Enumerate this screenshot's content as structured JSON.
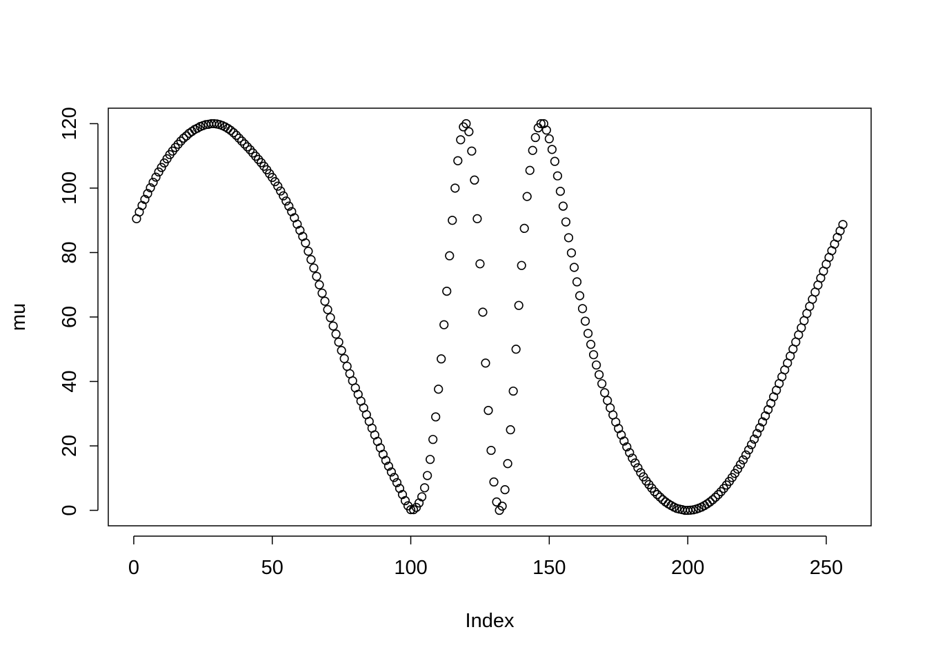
{
  "chart_data": {
    "type": "scatter",
    "x_label": "Index",
    "y_label": "mu",
    "color": "#000000",
    "x": [
      1,
      2,
      3,
      4,
      5,
      6,
      7,
      8,
      9,
      10,
      11,
      12,
      13,
      14,
      15,
      16,
      17,
      18,
      19,
      20,
      21,
      22,
      23,
      24,
      25,
      26,
      27,
      28,
      29,
      30,
      31,
      32,
      33,
      34,
      35,
      36,
      37,
      38,
      39,
      40,
      41,
      42,
      43,
      44,
      45,
      46,
      47,
      48,
      49,
      50,
      51,
      52,
      53,
      54,
      55,
      56,
      57,
      58,
      59,
      60,
      61,
      62,
      63,
      64,
      65,
      66,
      67,
      68,
      69,
      70,
      71,
      72,
      73,
      74,
      75,
      76,
      77,
      78,
      79,
      80,
      81,
      82,
      83,
      84,
      85,
      86,
      87,
      88,
      89,
      90,
      91,
      92,
      93,
      94,
      95,
      96,
      97,
      98,
      99,
      100,
      101,
      102,
      103,
      104,
      105,
      106,
      107,
      108,
      109,
      110,
      111,
      112,
      113,
      114,
      115,
      116,
      117,
      118,
      119,
      120,
      121,
      122,
      123,
      124,
      125,
      126,
      127,
      128,
      129,
      130,
      131,
      132,
      133,
      134,
      135,
      136,
      137,
      138,
      139,
      140,
      141,
      142,
      143,
      144,
      145,
      146,
      147,
      148,
      149,
      150,
      151,
      152,
      153,
      154,
      155,
      156,
      157,
      158,
      159,
      160,
      161,
      162,
      163,
      164,
      165,
      166,
      167,
      168,
      169,
      170,
      171,
      172,
      173,
      174,
      175,
      176,
      177,
      178,
      179,
      180,
      181,
      182,
      183,
      184,
      185,
      186,
      187,
      188,
      189,
      190,
      191,
      192,
      193,
      194,
      195,
      196,
      197,
      198,
      199,
      200,
      201,
      202,
      203,
      204,
      205,
      206,
      207,
      208,
      209,
      210,
      211,
      212,
      213,
      214,
      215,
      216,
      217,
      218,
      219,
      220,
      221,
      222,
      223,
      224,
      225,
      226,
      227,
      228,
      229,
      230,
      231,
      232,
      233,
      234,
      235,
      236,
      237,
      238,
      239,
      240,
      241,
      242,
      243,
      244,
      245,
      246,
      247,
      248,
      249,
      250,
      251,
      252,
      253,
      254,
      255,
      256
    ],
    "values": [
      90.5,
      92.6,
      94.6,
      96.5,
      98.3,
      100.1,
      101.8,
      103.4,
      105.0,
      106.4,
      107.8,
      109.1,
      110.4,
      111.5,
      112.6,
      113.6,
      114.6,
      115.5,
      116.2,
      117.0,
      117.6,
      118.2,
      118.6,
      119.1,
      119.4,
      119.7,
      119.8,
      120.0,
      120.0,
      119.9,
      119.7,
      119.4,
      119.0,
      118.5,
      117.9,
      117.2,
      116.4,
      115.5,
      114.6,
      113.7,
      112.8,
      111.9,
      110.9,
      109.9,
      108.9,
      107.9,
      106.8,
      105.7,
      104.5,
      103.3,
      102.0,
      100.6,
      99.1,
      97.6,
      96.0,
      94.4,
      92.7,
      90.8,
      88.8,
      86.9,
      85.0,
      83.0,
      80.4,
      77.8,
      75.2,
      72.6,
      70.0,
      67.4,
      64.9,
      62.3,
      59.8,
      57.2,
      54.7,
      52.2,
      49.6,
      47.1,
      44.7,
      42.4,
      40.2,
      38.0,
      36.0,
      33.9,
      31.8,
      29.7,
      27.6,
      25.5,
      23.4,
      21.4,
      19.4,
      17.4,
      15.5,
      13.7,
      11.9,
      10.2,
      8.6,
      6.8,
      4.9,
      3.0,
      1.4,
      0.2,
      0.2,
      0.9,
      2.3,
      4.2,
      7.0,
      10.8,
      15.8,
      22.0,
      29.0,
      37.6,
      47.0,
      57.6,
      68.0,
      79.0,
      90.0,
      100.0,
      108.5,
      115.0,
      119.0,
      120.0,
      117.5,
      111.5,
      102.5,
      90.5,
      76.5,
      61.5,
      45.7,
      31.0,
      18.6,
      8.8,
      2.6,
      0.0,
      1.3,
      6.4,
      14.5,
      25.0,
      37.0,
      50.0,
      63.6,
      76.0,
      87.5,
      97.4,
      105.5,
      111.7,
      115.7,
      118.7,
      120.0,
      120.0,
      118.0,
      115.3,
      112.0,
      108.3,
      103.8,
      99.0,
      94.4,
      89.5,
      84.6,
      79.9,
      75.4,
      70.9,
      66.6,
      62.6,
      58.7,
      54.9,
      51.5,
      48.3,
      45.1,
      42.1,
      39.3,
      36.5,
      34.1,
      31.8,
      29.6,
      27.4,
      25.4,
      23.4,
      21.5,
      19.7,
      17.9,
      16.2,
      14.7,
      13.2,
      11.7,
      10.4,
      9.1,
      8.0,
      6.9,
      5.8,
      4.9,
      4.1,
      3.3,
      2.6,
      2.0,
      1.5,
      1.0,
      0.6,
      0.4,
      0.2,
      0.0,
      0.0,
      0.04,
      0.16,
      0.37,
      0.65,
      1.02,
      1.47,
      2.0,
      2.6,
      3.29,
      4.05,
      4.89,
      5.8,
      6.79,
      7.85,
      8.98,
      10.18,
      11.45,
      12.79,
      14.2,
      15.65,
      17.18,
      18.76,
      20.4,
      22.09,
      23.83,
      25.62,
      27.46,
      29.32,
      31.24,
      33.21,
      35.23,
      37.27,
      39.35,
      41.45,
      43.59,
      45.7,
      47.87,
      50.05,
      52.24,
      54.44,
      56.65,
      58.87,
      61.09,
      63.3,
      65.51,
      67.72,
      69.91,
      72.08,
      74.24,
      76.38,
      78.5,
      80.58,
      82.63,
      84.71,
      86.72,
      88.69
    ],
    "xlim": [
      -9.2,
      266.2
    ],
    "ylim": [
      -4.8,
      124.8
    ],
    "xticks": [
      0,
      50,
      100,
      150,
      200,
      250
    ],
    "yticks": [
      0,
      20,
      40,
      60,
      80,
      100,
      120
    ]
  }
}
